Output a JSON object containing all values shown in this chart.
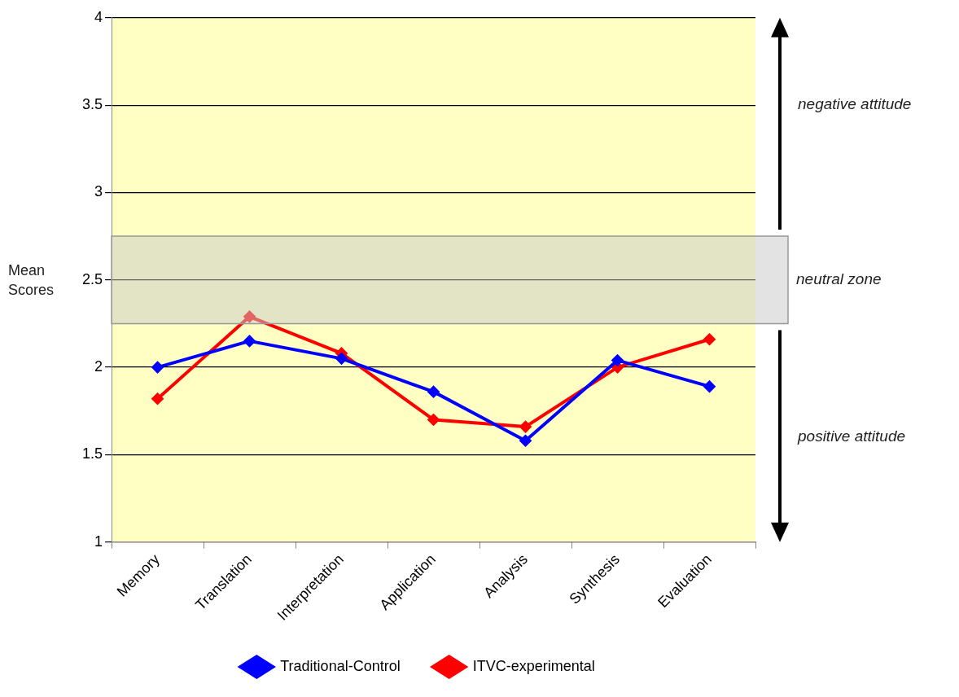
{
  "chart_data": {
    "type": "line",
    "ylabel": "Mean Scores",
    "categories": [
      "Memory",
      "Translation",
      "Interpretation",
      "Application",
      "Analysis",
      "Synthesis",
      "Evaluation"
    ],
    "series": [
      {
        "name": "Traditional-Control",
        "color": "#0000ff",
        "values": [
          2.0,
          2.15,
          2.05,
          1.86,
          1.58,
          2.04,
          1.89
        ]
      },
      {
        "name": "ITVC-experimental",
        "color": "#ff0000",
        "values": [
          1.82,
          2.29,
          2.08,
          1.7,
          1.66,
          2.0,
          2.16
        ]
      }
    ],
    "ylim": [
      1,
      4
    ],
    "yticks": [
      1,
      1.5,
      2,
      2.5,
      3,
      3.5,
      4
    ],
    "grid": "y",
    "legend": "bottom",
    "marker": "diamond",
    "line_style": "solid",
    "bands": [
      {
        "axis": "y",
        "from": 2.25,
        "to": 2.75,
        "label": "neutral zone",
        "color": "#c8c8c8"
      }
    ],
    "annotations": [
      "negative attitude",
      "positive attitude"
    ]
  }
}
